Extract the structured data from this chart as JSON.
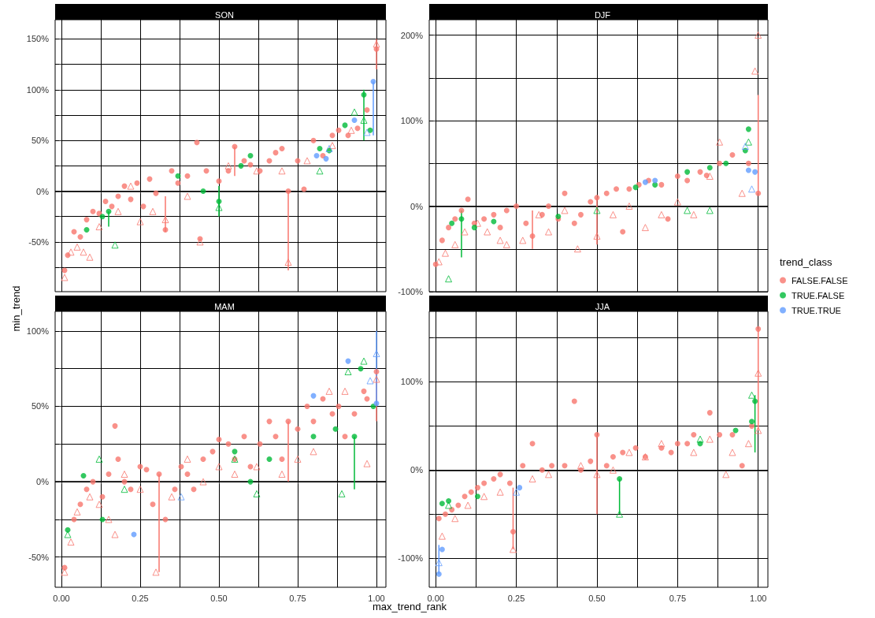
{
  "chart_data": [
    {
      "type": "scatter",
      "title": "SON",
      "ylabel": "min_trend",
      "xlim": [
        -0.02,
        1.03
      ],
      "ylim": [
        -99,
        169
      ],
      "grid": true,
      "tick_labels": "y",
      "xticks": [
        {
          "value": 0,
          "label": null
        },
        {
          "value": 0.125,
          "label": null
        },
        {
          "value": 0.25,
          "label": null
        },
        {
          "value": 0.375,
          "label": null
        },
        {
          "value": 0.5,
          "label": null
        },
        {
          "value": 0.625,
          "label": null
        },
        {
          "value": 0.75,
          "label": null
        },
        {
          "value": 0.875,
          "label": null
        },
        {
          "value": 1,
          "label": null
        }
      ],
      "yticks": [
        {
          "value": -75,
          "label": null
        },
        {
          "value": -50,
          "label": "-50%"
        },
        {
          "value": -25,
          "label": null
        },
        {
          "value": 0,
          "label": "0%"
        },
        {
          "value": 25,
          "label": null
        },
        {
          "value": 50,
          "label": "50%"
        },
        {
          "value": 75,
          "label": null
        },
        {
          "value": 100,
          "label": "100%"
        },
        {
          "value": 125,
          "label": null
        },
        {
          "value": 150,
          "label": "150%"
        }
      ],
      "ref_lines": [
        {
          "axis": "y",
          "value": 0,
          "label": null
        }
      ],
      "series": [
        {
          "color": "#f8766d",
          "marker": "circle",
          "x": [
            0.01,
            0.02,
            0.04,
            0.06,
            0.08,
            0.1,
            0.12,
            0.14,
            0.16,
            0.18,
            0.2,
            0.22,
            0.24,
            0.26,
            0.28,
            0.3,
            0.33,
            0.35,
            0.37,
            0.4,
            0.43,
            0.44,
            0.46,
            0.5,
            0.53,
            0.55,
            0.58,
            0.6,
            0.63,
            0.66,
            0.68,
            0.7,
            0.72,
            0.75,
            0.77,
            0.8,
            0.83,
            0.86,
            0.88,
            0.91,
            0.94,
            0.97,
            1.0
          ],
          "values": [
            -78,
            -63,
            -40,
            -45,
            -28,
            -20,
            -22,
            -10,
            -15,
            -5,
            5,
            -8,
            8,
            -15,
            12,
            -2,
            -38,
            20,
            8,
            15,
            48,
            -47,
            20,
            10,
            20,
            44,
            30,
            26,
            20,
            30,
            38,
            42,
            0,
            30,
            2,
            50,
            35,
            55,
            60,
            55,
            62,
            80,
            140
          ],
          "errors": [
            null,
            null,
            null,
            null,
            null,
            null,
            null,
            null,
            null,
            null,
            null,
            null,
            null,
            null,
            null,
            null,
            [
              -40,
              -5
            ],
            null,
            null,
            null,
            null,
            null,
            null,
            null,
            null,
            [
              15,
              44
            ],
            null,
            null,
            null,
            null,
            null,
            null,
            [
              -78,
              0
            ],
            null,
            null,
            null,
            null,
            null,
            null,
            null,
            null,
            null,
            [
              120,
              150
            ]
          ]
        },
        {
          "color": "#f8766d",
          "marker": "triangle",
          "x": [
            0.01,
            0.03,
            0.05,
            0.07,
            0.09,
            0.12,
            0.18,
            0.22,
            0.25,
            0.29,
            0.33,
            0.4,
            0.44,
            0.53,
            0.62,
            0.7,
            0.72,
            0.78,
            0.86,
            0.92,
            1.0
          ],
          "values": [
            -85,
            -60,
            -55,
            -60,
            -65,
            -35,
            -20,
            5,
            -30,
            -20,
            -28,
            -5,
            -50,
            25,
            20,
            20,
            -70,
            30,
            45,
            60,
            145
          ]
        },
        {
          "color": "#00ba38",
          "marker": "circle",
          "x": [
            0.08,
            0.13,
            0.15,
            0.37,
            0.45,
            0.5,
            0.57,
            0.6,
            0.82,
            0.85,
            0.9,
            0.96,
            0.98
          ],
          "values": [
            -38,
            -25,
            -20,
            15,
            0,
            -10,
            25,
            35,
            42,
            40,
            65,
            95,
            60
          ],
          "errors": [
            null,
            null,
            [
              -35,
              -20
            ],
            null,
            null,
            [
              -25,
              5
            ],
            null,
            null,
            null,
            null,
            null,
            [
              50,
              100
            ],
            null
          ]
        },
        {
          "color": "#00ba38",
          "marker": "triangle",
          "x": [
            0.17,
            0.5,
            0.82,
            0.93,
            0.96
          ],
          "values": [
            -53,
            -16,
            20,
            78,
            70
          ]
        },
        {
          "color": "#619cff",
          "marker": "circle",
          "x": [
            0.81,
            0.84,
            0.93,
            0.99
          ],
          "values": [
            35,
            32,
            70,
            108
          ],
          "errors": [
            null,
            null,
            null,
            [
              55,
              108
            ]
          ]
        },
        {
          "color": "#619cff",
          "marker": "triangle",
          "x": [
            0.85,
            0.97
          ],
          "values": [
            42,
            58
          ]
        }
      ]
    },
    {
      "type": "scatter",
      "title": "DJF",
      "legend": "right",
      "legend_title": "trend_class",
      "xlim": [
        -0.02,
        1.03
      ],
      "ylim": [
        -100,
        218
      ],
      "grid": true,
      "tick_labels": "y",
      "xticks": [
        {
          "value": 0,
          "label": null
        },
        {
          "value": 0.125,
          "label": null
        },
        {
          "value": 0.25,
          "label": null
        },
        {
          "value": 0.375,
          "label": null
        },
        {
          "value": 0.5,
          "label": null
        },
        {
          "value": 0.625,
          "label": null
        },
        {
          "value": 0.75,
          "label": null
        },
        {
          "value": 0.875,
          "label": null
        },
        {
          "value": 1,
          "label": null
        }
      ],
      "yticks": [
        {
          "value": -100,
          "label": "-100%"
        },
        {
          "value": -50,
          "label": null
        },
        {
          "value": 0,
          "label": "0%"
        },
        {
          "value": 50,
          "label": null
        },
        {
          "value": 100,
          "label": "100%"
        },
        {
          "value": 150,
          "label": null
        },
        {
          "value": 200,
          "label": "200%"
        }
      ],
      "ref_lines": [
        {
          "axis": "y",
          "value": 0,
          "label": null
        }
      ],
      "series": [
        {
          "name": "FALSE.FALSE",
          "color": "#f8766d",
          "marker": "circle",
          "x": [
            0.0,
            0.02,
            0.04,
            0.06,
            0.08,
            0.1,
            0.12,
            0.15,
            0.18,
            0.2,
            0.22,
            0.25,
            0.28,
            0.3,
            0.33,
            0.35,
            0.38,
            0.4,
            0.43,
            0.45,
            0.48,
            0.5,
            0.53,
            0.56,
            0.58,
            0.6,
            0.63,
            0.66,
            0.7,
            0.72,
            0.75,
            0.78,
            0.82,
            0.84,
            0.88,
            0.92,
            0.97,
            1.0
          ],
          "values": [
            -68,
            -40,
            -25,
            -15,
            -5,
            8,
            -20,
            -15,
            -10,
            -25,
            -5,
            0,
            -20,
            -35,
            -10,
            0,
            -15,
            15,
            -20,
            -10,
            5,
            10,
            15,
            20,
            -30,
            20,
            25,
            30,
            25,
            -15,
            35,
            30,
            40,
            36,
            50,
            60,
            50,
            15
          ],
          "errors": [
            null,
            null,
            null,
            null,
            null,
            null,
            null,
            null,
            null,
            null,
            null,
            null,
            null,
            [
              -50,
              -5
            ],
            null,
            null,
            null,
            null,
            null,
            null,
            null,
            [
              -45,
              10
            ],
            null,
            null,
            null,
            null,
            null,
            null,
            null,
            null,
            null,
            null,
            null,
            null,
            null,
            null,
            null,
            [
              15,
              130
            ]
          ]
        },
        {
          "color": "#f8766d",
          "marker": "triangle",
          "x": [
            0.01,
            0.03,
            0.06,
            0.09,
            0.13,
            0.16,
            0.2,
            0.22,
            0.27,
            0.32,
            0.35,
            0.4,
            0.44,
            0.5,
            0.55,
            0.6,
            0.65,
            0.7,
            0.75,
            0.8,
            0.85,
            0.88,
            0.95,
            0.99,
            1.0
          ],
          "values": [
            -65,
            -55,
            -45,
            -30,
            -20,
            -30,
            -40,
            -45,
            -40,
            -10,
            -30,
            -5,
            -50,
            -35,
            -10,
            0,
            -25,
            -10,
            5,
            -10,
            35,
            75,
            15,
            158,
            200
          ]
        },
        {
          "name": "TRUE.FALSE",
          "color": "#00ba38",
          "marker": "circle",
          "x": [
            0.05,
            0.08,
            0.12,
            0.18,
            0.38,
            0.62,
            0.68,
            0.78,
            0.85,
            0.9,
            0.96,
            0.97
          ],
          "values": [
            -20,
            -15,
            -25,
            -18,
            -12,
            22,
            25,
            40,
            45,
            50,
            65,
            90
          ],
          "errors": [
            null,
            [
              -60,
              -5
            ],
            null,
            null,
            null,
            null,
            null,
            null,
            null,
            null,
            null,
            null
          ]
        },
        {
          "color": "#00ba38",
          "marker": "triangle",
          "x": [
            0.04,
            0.5,
            0.78,
            0.85,
            0.97
          ],
          "values": [
            -85,
            -5,
            -5,
            -5,
            75
          ]
        },
        {
          "name": "TRUE.TRUE",
          "color": "#619cff",
          "marker": "circle",
          "x": [
            0.65,
            0.68,
            0.97,
            0.99
          ],
          "values": [
            28,
            30,
            42,
            40
          ]
        },
        {
          "color": "#619cff",
          "marker": "triangle",
          "x": [
            0.96,
            0.98
          ],
          "values": [
            70,
            20
          ]
        }
      ]
    },
    {
      "type": "scatter",
      "title": "MAM",
      "xlabel": "max_trend_rank",
      "xlim": [
        -0.02,
        1.03
      ],
      "ylim": [
        -70,
        113
      ],
      "grid": true,
      "xticks": [
        {
          "value": 0,
          "label": "0.00"
        },
        {
          "value": 0.125,
          "label": null
        },
        {
          "value": 0.25,
          "label": "0.25"
        },
        {
          "value": 0.375,
          "label": null
        },
        {
          "value": 0.5,
          "label": "0.50"
        },
        {
          "value": 0.625,
          "label": null
        },
        {
          "value": 0.75,
          "label": "0.75"
        },
        {
          "value": 0.875,
          "label": null
        },
        {
          "value": 1,
          "label": "1.00"
        }
      ],
      "yticks": [
        {
          "value": -50,
          "label": "-50%"
        },
        {
          "value": -25,
          "label": null
        },
        {
          "value": 0,
          "label": "0%"
        },
        {
          "value": 25,
          "label": null
        },
        {
          "value": 50,
          "label": "50%"
        },
        {
          "value": 75,
          "label": null
        },
        {
          "value": 100,
          "label": "100%"
        }
      ],
      "ref_lines": [
        {
          "axis": "y",
          "value": 0,
          "label": null
        }
      ],
      "series": [
        {
          "color": "#f8766d",
          "marker": "circle",
          "x": [
            0.01,
            0.04,
            0.06,
            0.08,
            0.1,
            0.13,
            0.15,
            0.17,
            0.18,
            0.2,
            0.22,
            0.25,
            0.27,
            0.29,
            0.31,
            0.33,
            0.36,
            0.38,
            0.4,
            0.42,
            0.45,
            0.48,
            0.5,
            0.53,
            0.55,
            0.58,
            0.6,
            0.63,
            0.66,
            0.68,
            0.7,
            0.72,
            0.75,
            0.78,
            0.8,
            0.83,
            0.86,
            0.88,
            0.9,
            0.93,
            0.96,
            0.97,
            1.0
          ],
          "values": [
            -57,
            -25,
            -15,
            -5,
            0,
            -10,
            5,
            37,
            15,
            0,
            -5,
            10,
            8,
            -15,
            5,
            -25,
            -5,
            10,
            5,
            -5,
            15,
            20,
            28,
            25,
            15,
            30,
            10,
            25,
            40,
            30,
            15,
            40,
            35,
            50,
            40,
            55,
            45,
            50,
            30,
            45,
            60,
            55,
            73
          ],
          "errors": [
            null,
            null,
            null,
            null,
            null,
            null,
            null,
            null,
            null,
            null,
            null,
            null,
            null,
            null,
            [
              -60,
              5
            ],
            null,
            null,
            null,
            null,
            null,
            null,
            null,
            null,
            null,
            null,
            null,
            null,
            null,
            null,
            null,
            null,
            [
              0,
              40
            ],
            null,
            null,
            null,
            null,
            null,
            null,
            null,
            null,
            null,
            null,
            [
              40,
              73
            ]
          ]
        },
        {
          "color": "#f8766d",
          "marker": "triangle",
          "x": [
            0.01,
            0.03,
            0.05,
            0.09,
            0.12,
            0.15,
            0.17,
            0.2,
            0.25,
            0.3,
            0.35,
            0.4,
            0.45,
            0.5,
            0.55,
            0.62,
            0.7,
            0.75,
            0.8,
            0.85,
            0.9,
            0.97,
            1.0
          ],
          "values": [
            -60,
            -40,
            -20,
            -10,
            -15,
            -25,
            -35,
            5,
            -5,
            -60,
            -10,
            15,
            0,
            10,
            5,
            10,
            5,
            15,
            20,
            60,
            60,
            12,
            68
          ]
        },
        {
          "color": "#00ba38",
          "marker": "circle",
          "x": [
            0.02,
            0.07,
            0.13,
            0.55,
            0.6,
            0.66,
            0.8,
            0.87,
            0.93,
            0.95,
            0.99
          ],
          "values": [
            -32,
            4,
            -25,
            20,
            0,
            15,
            30,
            35,
            30,
            75,
            50
          ],
          "errors": [
            null,
            null,
            null,
            null,
            null,
            null,
            null,
            null,
            [
              -5,
              30
            ],
            null,
            null
          ]
        },
        {
          "color": "#00ba38",
          "marker": "triangle",
          "x": [
            0.02,
            0.12,
            0.2,
            0.55,
            0.62,
            0.89,
            0.91,
            0.96
          ],
          "values": [
            -35,
            15,
            -5,
            15,
            -8,
            -8,
            73,
            80
          ]
        },
        {
          "color": "#619cff",
          "marker": "circle",
          "x": [
            0.23,
            0.8,
            0.91,
            1.0
          ],
          "values": [
            -35,
            57,
            80,
            52
          ],
          "errors": [
            null,
            null,
            null,
            [
              52,
              100
            ]
          ]
        },
        {
          "color": "#619cff",
          "marker": "triangle",
          "x": [
            0.38,
            0.98,
            1.0
          ],
          "values": [
            -10,
            67,
            85
          ]
        }
      ]
    },
    {
      "type": "scatter",
      "title": "JJA",
      "xlim": [
        -0.02,
        1.03
      ],
      "ylim": [
        -133,
        180
      ],
      "grid": true,
      "xticks": [
        {
          "value": 0,
          "label": "0.00"
        },
        {
          "value": 0.125,
          "label": null
        },
        {
          "value": 0.25,
          "label": "0.25"
        },
        {
          "value": 0.375,
          "label": null
        },
        {
          "value": 0.5,
          "label": "0.50"
        },
        {
          "value": 0.625,
          "label": null
        },
        {
          "value": 0.75,
          "label": "0.75"
        },
        {
          "value": 0.875,
          "label": null
        },
        {
          "value": 1,
          "label": "1.00"
        }
      ],
      "yticks": [
        {
          "value": -100,
          "label": "-100%"
        },
        {
          "value": -50,
          "label": null
        },
        {
          "value": 0,
          "label": "0%"
        },
        {
          "value": 50,
          "label": null
        },
        {
          "value": 100,
          "label": "100%"
        },
        {
          "value": 150,
          "label": null
        }
      ],
      "ref_lines": [
        {
          "axis": "y",
          "value": 0,
          "label": null
        }
      ],
      "series": [
        {
          "color": "#f8766d",
          "marker": "circle",
          "x": [
            0.01,
            0.03,
            0.05,
            0.07,
            0.09,
            0.11,
            0.13,
            0.15,
            0.18,
            0.2,
            0.23,
            0.24,
            0.27,
            0.3,
            0.33,
            0.36,
            0.4,
            0.43,
            0.45,
            0.48,
            0.5,
            0.53,
            0.55,
            0.58,
            0.62,
            0.65,
            0.7,
            0.73,
            0.75,
            0.78,
            0.8,
            0.85,
            0.88,
            0.92,
            0.95,
            0.98,
            1.0
          ],
          "values": [
            -55,
            -50,
            -45,
            -40,
            -30,
            -25,
            -20,
            -15,
            -10,
            -5,
            -15,
            -70,
            5,
            30,
            0,
            5,
            5,
            78,
            0,
            10,
            40,
            5,
            15,
            20,
            25,
            15,
            25,
            20,
            30,
            30,
            40,
            65,
            40,
            40,
            5,
            50,
            160
          ],
          "errors": [
            null,
            null,
            null,
            null,
            null,
            null,
            null,
            null,
            null,
            null,
            null,
            [
              -90,
              -20
            ],
            null,
            null,
            null,
            null,
            null,
            null,
            null,
            null,
            [
              -50,
              40
            ],
            null,
            null,
            null,
            null,
            null,
            null,
            null,
            null,
            null,
            null,
            null,
            null,
            null,
            null,
            null,
            [
              45,
              160
            ]
          ]
        },
        {
          "color": "#f8766d",
          "marker": "triangle",
          "x": [
            0.02,
            0.06,
            0.1,
            0.15,
            0.2,
            0.24,
            0.3,
            0.35,
            0.45,
            0.5,
            0.55,
            0.6,
            0.65,
            0.7,
            0.8,
            0.85,
            0.9,
            0.92,
            0.97,
            1.0,
            1.0
          ],
          "values": [
            -75,
            -55,
            -40,
            -30,
            -25,
            -90,
            -10,
            -5,
            5,
            -5,
            0,
            20,
            15,
            30,
            20,
            35,
            -5,
            20,
            30,
            110,
            45
          ]
        },
        {
          "color": "#00ba38",
          "marker": "circle",
          "x": [
            0.02,
            0.04,
            0.13,
            0.57,
            0.82,
            0.93,
            0.98,
            0.99
          ],
          "values": [
            -38,
            -35,
            -30,
            -10,
            30,
            45,
            55,
            78
          ],
          "errors": [
            null,
            null,
            null,
            [
              -50,
              -10
            ],
            null,
            null,
            null,
            [
              20,
              85
            ]
          ]
        },
        {
          "color": "#00ba38",
          "marker": "triangle",
          "x": [
            0.04,
            0.57,
            0.82,
            0.98
          ],
          "values": [
            -40,
            -50,
            35,
            85
          ]
        },
        {
          "color": "#619cff",
          "marker": "circle",
          "x": [
            0.01,
            0.02,
            0.26
          ],
          "values": [
            -118,
            -90,
            -20
          ],
          "errors": [
            [
              -118,
              -85
            ],
            null,
            null
          ]
        },
        {
          "color": "#619cff",
          "marker": "triangle",
          "x": [
            0.01,
            0.25
          ],
          "values": [
            -105,
            -25
          ]
        }
      ]
    }
  ]
}
